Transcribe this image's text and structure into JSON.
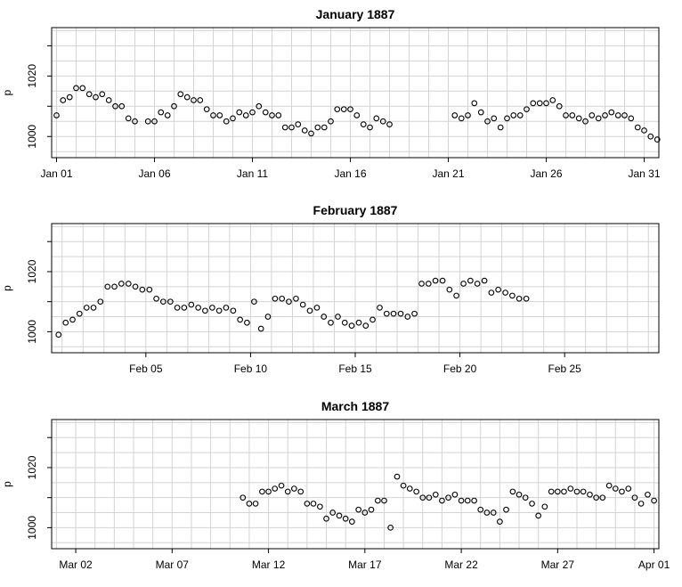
{
  "chart_data": [
    {
      "type": "scatter",
      "title": "January 1887",
      "ylabel": "p",
      "ylim": [
        993,
        1036
      ],
      "yticks": [
        1000,
        1020
      ],
      "xlim": [
        0.75,
        31.75
      ],
      "xticks": [
        {
          "x": 1,
          "label": "Jan 01"
        },
        {
          "x": 6,
          "label": "Jan 06"
        },
        {
          "x": 11,
          "label": "Jan 11"
        },
        {
          "x": 16,
          "label": "Jan 16"
        },
        {
          "x": 21,
          "label": "Jan 21"
        },
        {
          "x": 26,
          "label": "Jan 26"
        },
        {
          "x": 31,
          "label": "Jan 31"
        }
      ],
      "grid": true,
      "points": [
        [
          1.0,
          1007
        ],
        [
          1.33,
          1012
        ],
        [
          1.67,
          1013
        ],
        [
          2.0,
          1016
        ],
        [
          2.33,
          1016
        ],
        [
          2.67,
          1014
        ],
        [
          3.0,
          1013
        ],
        [
          3.33,
          1014
        ],
        [
          3.67,
          1012
        ],
        [
          4.0,
          1010
        ],
        [
          4.33,
          1010
        ],
        [
          4.67,
          1006
        ],
        [
          5.0,
          1005
        ],
        [
          5.67,
          1005
        ],
        [
          6.0,
          1005
        ],
        [
          6.33,
          1008
        ],
        [
          6.67,
          1007
        ],
        [
          7.0,
          1010
        ],
        [
          7.33,
          1014
        ],
        [
          7.67,
          1013
        ],
        [
          8.0,
          1012
        ],
        [
          8.33,
          1012
        ],
        [
          8.67,
          1009
        ],
        [
          9.0,
          1007
        ],
        [
          9.33,
          1007
        ],
        [
          9.67,
          1005
        ],
        [
          10.0,
          1006
        ],
        [
          10.33,
          1008
        ],
        [
          10.67,
          1007
        ],
        [
          11.0,
          1008
        ],
        [
          11.33,
          1010
        ],
        [
          11.67,
          1008
        ],
        [
          12.0,
          1007
        ],
        [
          12.33,
          1007
        ],
        [
          12.67,
          1003
        ],
        [
          13.0,
          1003
        ],
        [
          13.33,
          1004
        ],
        [
          13.67,
          1002
        ],
        [
          14.0,
          1001
        ],
        [
          14.33,
          1003
        ],
        [
          14.67,
          1003
        ],
        [
          15.0,
          1005
        ],
        [
          15.33,
          1009
        ],
        [
          15.67,
          1009
        ],
        [
          16.0,
          1009
        ],
        [
          16.33,
          1007
        ],
        [
          16.67,
          1004
        ],
        [
          17.0,
          1003
        ],
        [
          17.33,
          1006
        ],
        [
          17.67,
          1005
        ],
        [
          18.0,
          1004
        ],
        [
          21.33,
          1007
        ],
        [
          21.67,
          1006
        ],
        [
          22.0,
          1007
        ],
        [
          22.33,
          1011
        ],
        [
          22.67,
          1008
        ],
        [
          23.0,
          1005
        ],
        [
          23.33,
          1006
        ],
        [
          23.67,
          1003
        ],
        [
          24.0,
          1006
        ],
        [
          24.33,
          1007
        ],
        [
          24.67,
          1007
        ],
        [
          25.0,
          1009
        ],
        [
          25.33,
          1011
        ],
        [
          25.67,
          1011
        ],
        [
          26.0,
          1011
        ],
        [
          26.33,
          1012
        ],
        [
          26.67,
          1010
        ],
        [
          27.0,
          1007
        ],
        [
          27.33,
          1007
        ],
        [
          27.67,
          1006
        ],
        [
          28.0,
          1005
        ],
        [
          28.33,
          1007
        ],
        [
          28.67,
          1006
        ],
        [
          29.0,
          1007
        ],
        [
          29.33,
          1008
        ],
        [
          29.67,
          1007
        ],
        [
          30.0,
          1007
        ],
        [
          30.33,
          1006
        ],
        [
          30.67,
          1003
        ],
        [
          31.0,
          1002
        ],
        [
          31.33,
          1000
        ],
        [
          31.67,
          999
        ]
      ]
    },
    {
      "type": "scatter",
      "title": "February 1887",
      "ylabel": "p",
      "ylim": [
        993,
        1036
      ],
      "yticks": [
        1000,
        1020
      ],
      "xlim": [
        0.5,
        29.5
      ],
      "xticks": [
        {
          "x": 5,
          "label": "Feb 05"
        },
        {
          "x": 10,
          "label": "Feb 10"
        },
        {
          "x": 15,
          "label": "Feb 15"
        },
        {
          "x": 20,
          "label": "Feb 20"
        },
        {
          "x": 25,
          "label": "Feb 25"
        }
      ],
      "grid": true,
      "points": [
        [
          0.83,
          999
        ],
        [
          1.17,
          1003
        ],
        [
          1.5,
          1004
        ],
        [
          1.83,
          1006
        ],
        [
          2.17,
          1008
        ],
        [
          2.5,
          1008
        ],
        [
          2.83,
          1010
        ],
        [
          3.17,
          1015
        ],
        [
          3.5,
          1015
        ],
        [
          3.83,
          1016
        ],
        [
          4.17,
          1016
        ],
        [
          4.5,
          1015
        ],
        [
          4.83,
          1014
        ],
        [
          5.17,
          1014
        ],
        [
          5.5,
          1011
        ],
        [
          5.83,
          1010
        ],
        [
          6.17,
          1010
        ],
        [
          6.5,
          1008
        ],
        [
          6.83,
          1008
        ],
        [
          7.17,
          1009
        ],
        [
          7.5,
          1008
        ],
        [
          7.83,
          1007
        ],
        [
          8.17,
          1008
        ],
        [
          8.5,
          1007
        ],
        [
          8.83,
          1008
        ],
        [
          9.17,
          1007
        ],
        [
          9.5,
          1004
        ],
        [
          9.83,
          1003
        ],
        [
          10.17,
          1010
        ],
        [
          10.5,
          1001
        ],
        [
          10.83,
          1005
        ],
        [
          11.17,
          1011
        ],
        [
          11.5,
          1011
        ],
        [
          11.83,
          1010
        ],
        [
          12.17,
          1011
        ],
        [
          12.5,
          1009
        ],
        [
          12.83,
          1007
        ],
        [
          13.17,
          1008
        ],
        [
          13.5,
          1005
        ],
        [
          13.83,
          1003
        ],
        [
          14.17,
          1005
        ],
        [
          14.5,
          1003
        ],
        [
          14.83,
          1002
        ],
        [
          15.17,
          1003
        ],
        [
          15.5,
          1002
        ],
        [
          15.83,
          1004
        ],
        [
          16.17,
          1008
        ],
        [
          16.5,
          1006
        ],
        [
          16.83,
          1006
        ],
        [
          17.17,
          1006
        ],
        [
          17.5,
          1005
        ],
        [
          17.83,
          1006
        ],
        [
          18.17,
          1016
        ],
        [
          18.5,
          1016
        ],
        [
          18.83,
          1017
        ],
        [
          19.17,
          1017
        ],
        [
          19.5,
          1014
        ],
        [
          19.83,
          1012
        ],
        [
          20.17,
          1016
        ],
        [
          20.5,
          1017
        ],
        [
          20.83,
          1016
        ],
        [
          21.17,
          1017
        ],
        [
          21.5,
          1013
        ],
        [
          21.83,
          1014
        ],
        [
          22.17,
          1013
        ],
        [
          22.5,
          1012
        ],
        [
          22.83,
          1011
        ],
        [
          23.17,
          1011
        ]
      ]
    },
    {
      "type": "scatter",
      "title": "March 1887",
      "ylabel": "p",
      "ylim": [
        993,
        1036
      ],
      "yticks": [
        1000,
        1020
      ],
      "xlim": [
        0.75,
        32.25
      ],
      "xticks": [
        {
          "x": 2,
          "label": "Mar 02"
        },
        {
          "x": 7,
          "label": "Mar 07"
        },
        {
          "x": 12,
          "label": "Mar 12"
        },
        {
          "x": 17,
          "label": "Mar 17"
        },
        {
          "x": 22,
          "label": "Mar 22"
        },
        {
          "x": 27,
          "label": "Mar 27"
        },
        {
          "x": 32,
          "label": "Apr 01"
        }
      ],
      "grid": true,
      "points": [
        [
          10.67,
          1010
        ],
        [
          11.0,
          1008
        ],
        [
          11.33,
          1008
        ],
        [
          11.67,
          1012
        ],
        [
          12.0,
          1012
        ],
        [
          12.33,
          1013
        ],
        [
          12.67,
          1014
        ],
        [
          13.0,
          1012
        ],
        [
          13.33,
          1013
        ],
        [
          13.67,
          1012
        ],
        [
          14.0,
          1008
        ],
        [
          14.33,
          1008
        ],
        [
          14.67,
          1007
        ],
        [
          15.0,
          1003
        ],
        [
          15.33,
          1005
        ],
        [
          15.67,
          1004
        ],
        [
          16.0,
          1003
        ],
        [
          16.33,
          1002
        ],
        [
          16.67,
          1006
        ],
        [
          17.0,
          1005
        ],
        [
          17.33,
          1006
        ],
        [
          17.67,
          1009
        ],
        [
          18.0,
          1009
        ],
        [
          18.33,
          1000
        ],
        [
          18.67,
          1017
        ],
        [
          19.0,
          1014
        ],
        [
          19.33,
          1013
        ],
        [
          19.67,
          1012
        ],
        [
          20.0,
          1010
        ],
        [
          20.33,
          1010
        ],
        [
          20.67,
          1011
        ],
        [
          21.0,
          1009
        ],
        [
          21.33,
          1010
        ],
        [
          21.67,
          1011
        ],
        [
          22.0,
          1009
        ],
        [
          22.33,
          1009
        ],
        [
          22.67,
          1009
        ],
        [
          23.0,
          1006
        ],
        [
          23.33,
          1005
        ],
        [
          23.67,
          1005
        ],
        [
          24.0,
          1002
        ],
        [
          24.33,
          1006
        ],
        [
          24.67,
          1012
        ],
        [
          25.0,
          1011
        ],
        [
          25.33,
          1010
        ],
        [
          25.67,
          1008
        ],
        [
          26.0,
          1004
        ],
        [
          26.33,
          1007
        ],
        [
          26.67,
          1012
        ],
        [
          27.0,
          1012
        ],
        [
          27.33,
          1012
        ],
        [
          27.67,
          1013
        ],
        [
          28.0,
          1012
        ],
        [
          28.33,
          1012
        ],
        [
          28.67,
          1011
        ],
        [
          29.0,
          1010
        ],
        [
          29.33,
          1010
        ],
        [
          29.67,
          1014
        ],
        [
          30.0,
          1013
        ],
        [
          30.33,
          1012
        ],
        [
          30.67,
          1013
        ],
        [
          31.0,
          1010
        ],
        [
          31.33,
          1008
        ],
        [
          31.67,
          1011
        ],
        [
          32.0,
          1009
        ]
      ]
    }
  ]
}
